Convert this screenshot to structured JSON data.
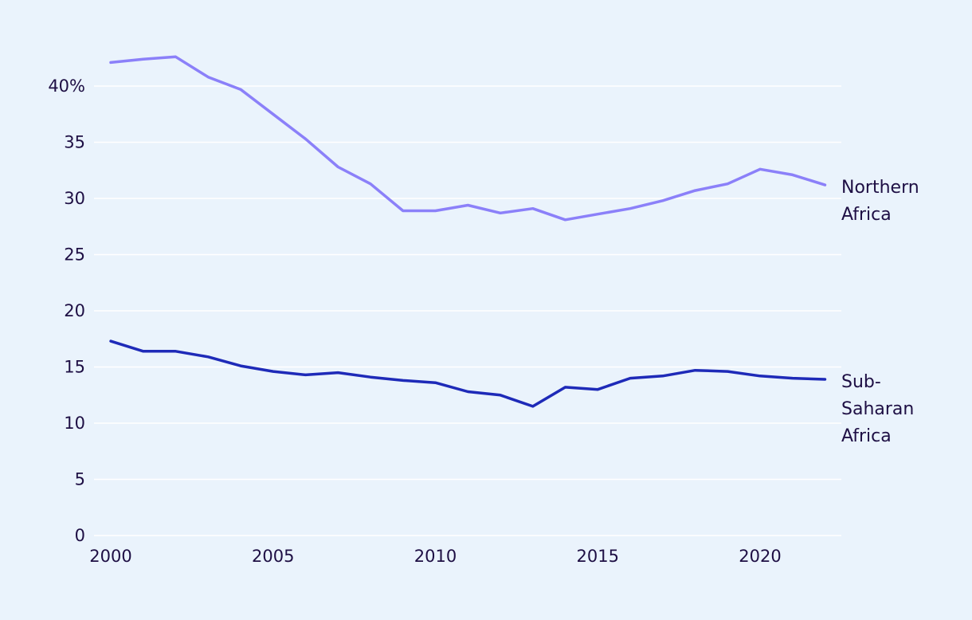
{
  "chart_data": {
    "type": "line",
    "title": "",
    "xlabel": "",
    "ylabel": "",
    "x": [
      2000,
      2001,
      2002,
      2003,
      2004,
      2005,
      2006,
      2007,
      2008,
      2009,
      2010,
      2011,
      2012,
      2013,
      2014,
      2015,
      2016,
      2017,
      2018,
      2019,
      2020,
      2021,
      2022
    ],
    "xlim": [
      2000,
      2022.5
    ],
    "ylim": [
      0,
      43
    ],
    "grid": true,
    "x_ticks": [
      {
        "value": 2000,
        "label": "2000"
      },
      {
        "value": 2005,
        "label": "2005"
      },
      {
        "value": 2010,
        "label": "2010"
      },
      {
        "value": 2015,
        "label": "2015"
      },
      {
        "value": 2020,
        "label": "2020"
      }
    ],
    "y_ticks": [
      {
        "value": 0,
        "label": "0"
      },
      {
        "value": 5,
        "label": "5"
      },
      {
        "value": 10,
        "label": "10"
      },
      {
        "value": 15,
        "label": "15"
      },
      {
        "value": 20,
        "label": "20"
      },
      {
        "value": 25,
        "label": "25"
      },
      {
        "value": 30,
        "label": "30"
      },
      {
        "value": 35,
        "label": "35"
      },
      {
        "value": 40,
        "label": "40%"
      }
    ],
    "series": [
      {
        "key": "northern-africa",
        "name": "Northern Africa",
        "label_lines": [
          "Northern",
          "Africa"
        ],
        "color": "#8b80f9",
        "values": [
          42.1,
          42.4,
          42.6,
          40.8,
          39.7,
          37.5,
          35.3,
          32.8,
          31.3,
          28.9,
          28.9,
          29.4,
          28.7,
          29.1,
          28.1,
          28.6,
          29.1,
          29.8,
          30.7,
          31.3,
          32.6,
          32.1,
          31.2
        ]
      },
      {
        "key": "sub-saharan-africa",
        "name": "Sub-Saharan Africa",
        "label_lines": [
          "Sub-",
          "Saharan",
          "Africa"
        ],
        "color": "#1e2ab8",
        "values": [
          17.3,
          16.4,
          16.4,
          15.9,
          15.1,
          14.6,
          14.3,
          14.5,
          14.1,
          13.8,
          13.6,
          12.8,
          12.5,
          11.5,
          13.2,
          13.0,
          14.0,
          14.2,
          14.7,
          14.6,
          14.2,
          14.0,
          13.9
        ]
      }
    ]
  }
}
